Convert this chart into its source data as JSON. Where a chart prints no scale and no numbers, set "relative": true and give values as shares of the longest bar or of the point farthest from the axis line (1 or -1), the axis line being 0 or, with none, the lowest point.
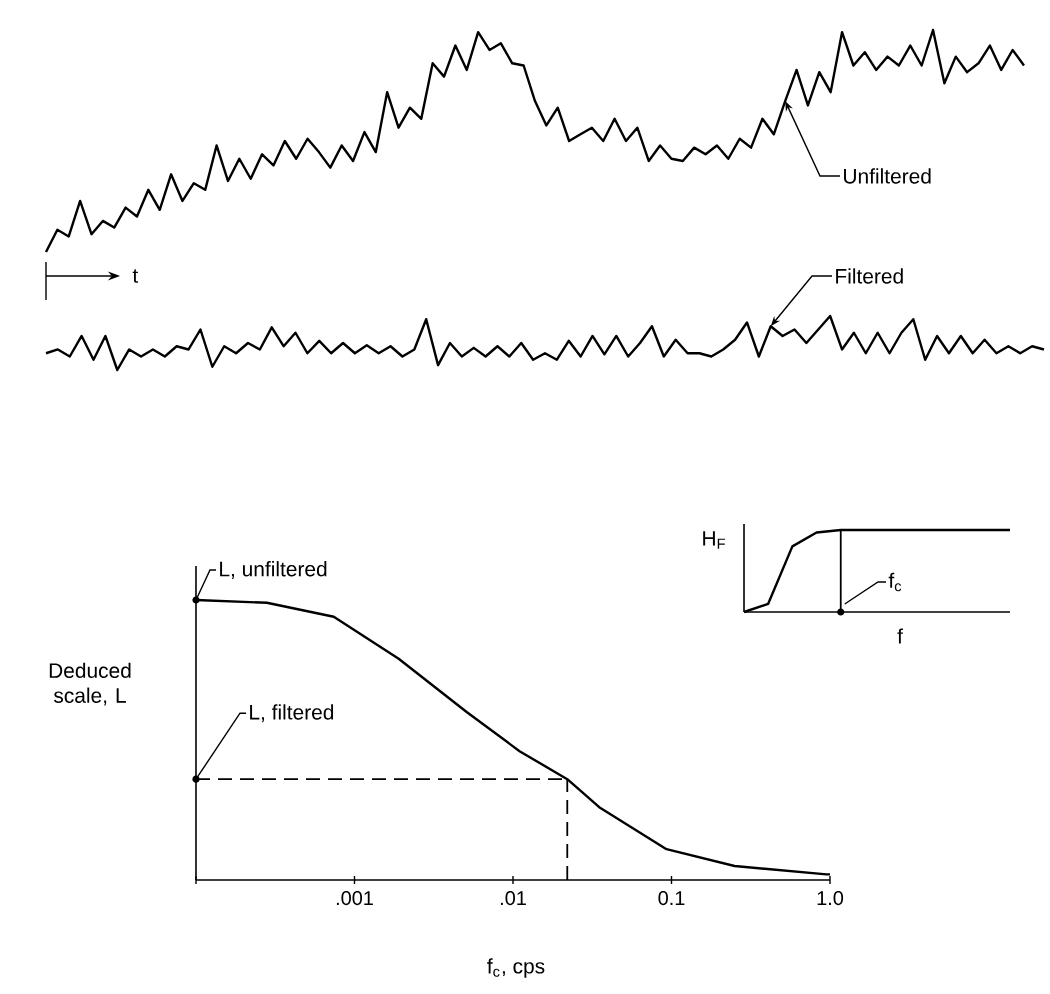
{
  "chart_data": [
    {
      "type": "line",
      "relative": true,
      "tick_labels": false,
      "annotations": [
        "t"
      ],
      "categories": [
        null,
        null,
        null,
        null,
        null,
        null,
        null,
        null,
        null,
        null,
        null,
        null,
        null,
        null,
        null,
        null,
        null,
        null,
        null,
        null,
        null,
        null,
        null,
        null,
        null,
        null,
        null,
        null,
        null,
        null,
        null,
        null,
        null,
        null,
        null,
        null,
        null,
        null,
        null,
        null,
        null,
        null,
        null,
        null,
        null,
        null,
        null,
        null,
        null,
        null,
        null,
        null,
        null,
        null,
        null,
        null,
        null,
        null,
        null,
        null,
        null,
        null,
        null,
        null,
        null,
        null,
        null,
        null,
        null,
        null,
        null,
        null,
        null,
        null,
        null,
        null,
        null,
        null,
        null,
        null,
        null,
        null,
        null,
        null,
        null,
        null,
        null
      ],
      "series": [
        {
          "name": "Unfiltered",
          "color": "#000000",
          "values": [
            0,
            0.1,
            0.07,
            0.23,
            0.08,
            0.14,
            0.11,
            0.2,
            0.16,
            0.28,
            0.19,
            0.35,
            0.23,
            0.31,
            0.28,
            0.48,
            0.32,
            0.42,
            0.33,
            0.44,
            0.39,
            0.5,
            0.42,
            0.51,
            0.45,
            0.38,
            0.48,
            0.41,
            0.54,
            0.45,
            0.72,
            0.56,
            0.65,
            0.6,
            0.85,
            0.79,
            0.93,
            0.82,
            0.99,
            0.91,
            0.94,
            0.85,
            0.84,
            0.68,
            0.57,
            0.65,
            0.5,
            0.53,
            0.56,
            0.5,
            0.6,
            0.5,
            0.56,
            0.41,
            0.48,
            0.42,
            0.41,
            0.47,
            0.44,
            0.48,
            0.42,
            0.51,
            0.47,
            0.6,
            0.53,
            0.68,
            0.82,
            0.66,
            0.81,
            0.72,
            0.99,
            0.84,
            0.9,
            0.82,
            0.88,
            0.84,
            0.93,
            0.84,
            1,
            0.76,
            0.88,
            0.81,
            0.85,
            0.93,
            0.82,
            0.91,
            0.84
          ]
        }
      ]
    },
    {
      "type": "line",
      "relative": true,
      "tick_labels": false,
      "categories": [
        null,
        null,
        null,
        null,
        null,
        null,
        null,
        null,
        null,
        null,
        null,
        null,
        null,
        null,
        null,
        null,
        null,
        null,
        null,
        null,
        null,
        null,
        null,
        null,
        null,
        null,
        null,
        null,
        null,
        null,
        null,
        null,
        null,
        null,
        null,
        null,
        null,
        null,
        null,
        null,
        null,
        null,
        null,
        null,
        null,
        null,
        null,
        null,
        null,
        null,
        null,
        null,
        null,
        null,
        null,
        null,
        null,
        null,
        null,
        null,
        null,
        null,
        null,
        null,
        null,
        null,
        null,
        null,
        null,
        null,
        null,
        null,
        null,
        null,
        null,
        null,
        null,
        null,
        null,
        null,
        null,
        null,
        null,
        null,
        null
      ],
      "series": [
        {
          "name": "Filtered",
          "color": "#000000",
          "values": [
            0.31,
            0.38,
            0.25,
            0.63,
            0.19,
            0.63,
            0,
            0.38,
            0.25,
            0.38,
            0.25,
            0.44,
            0.38,
            0.75,
            0.06,
            0.44,
            0.31,
            0.5,
            0.38,
            0.79,
            0.44,
            0.69,
            0.31,
            0.54,
            0.31,
            0.5,
            0.31,
            0.46,
            0.31,
            0.44,
            0.25,
            0.38,
            0.94,
            0.09,
            0.5,
            0.25,
            0.41,
            0.25,
            0.44,
            0.25,
            0.5,
            0.19,
            0.31,
            0.19,
            0.54,
            0.25,
            0.63,
            0.29,
            0.63,
            0.25,
            0.5,
            0.81,
            0.25,
            0.56,
            0.31,
            0.31,
            0.25,
            0.38,
            0.56,
            0.88,
            0.25,
            0.81,
            0.63,
            0.75,
            0.5,
            0.75,
            1,
            0.38,
            0.69,
            0.31,
            0.69,
            0.31,
            0.69,
            0.94,
            0.19,
            0.63,
            0.31,
            0.63,
            0.31,
            0.56,
            0.31,
            0.44,
            0.31,
            0.44,
            0.38
          ]
        }
      ]
    },
    {
      "type": "line",
      "relative": true,
      "log": "x",
      "tick_labels": "x",
      "xlabel": "f$_{c}$, cps",
      "ylabel": "Deduced scale, L",
      "xlim": [
        0.0001,
        1
      ],
      "xticks": [
        {
          "value": 0.0001,
          "label": null
        },
        {
          "value": 0.001,
          "label": ".001"
        },
        {
          "value": 0.01,
          "label": ".01"
        },
        {
          "value": 0.1,
          "label": "0.1"
        },
        {
          "value": 1,
          "label": "1.0"
        }
      ],
      "series": [
        {
          "color": "#000000",
          "x": [
            0.0001,
            0.00028,
            0.00074,
            0.0019,
            0.0051,
            0.011,
            0.022,
            0.035,
            0.093,
            0.25,
            0.95,
            1
          ],
          "values": [
            1,
            0.99,
            0.94,
            0.79,
            0.6,
            0.46,
            0.36,
            0.26,
            0.11,
            0.05,
            0.02,
            0.02
          ]
        }
      ],
      "ref_lines": [
        {
          "axis": "y",
          "value": 0.36,
          "line_style": "dashed"
        },
        {
          "axis": "x",
          "value": 0.022,
          "line_style": "dashed"
        }
      ],
      "annotations": [
        {
          "text": "L, unfiltered",
          "x": 0.0001,
          "y": 1
        },
        {
          "text": "L, filtered",
          "x": 0.0001,
          "y": 0.36
        }
      ]
    },
    {
      "type": "line",
      "relative": true,
      "tick_labels": false,
      "xlabel": "f",
      "ylabel": "H$_{F}$",
      "categories": [
        null,
        null,
        null,
        null,
        null,
        null,
        null,
        null,
        null,
        null,
        null,
        null
      ],
      "series": [
        {
          "color": "#000000",
          "values": [
            0,
            0.1,
            0.8,
            0.97,
            1,
            1,
            1,
            1,
            1,
            1,
            1,
            1
          ]
        }
      ],
      "annotations": [
        "f$_{c}$"
      ]
    }
  ]
}
